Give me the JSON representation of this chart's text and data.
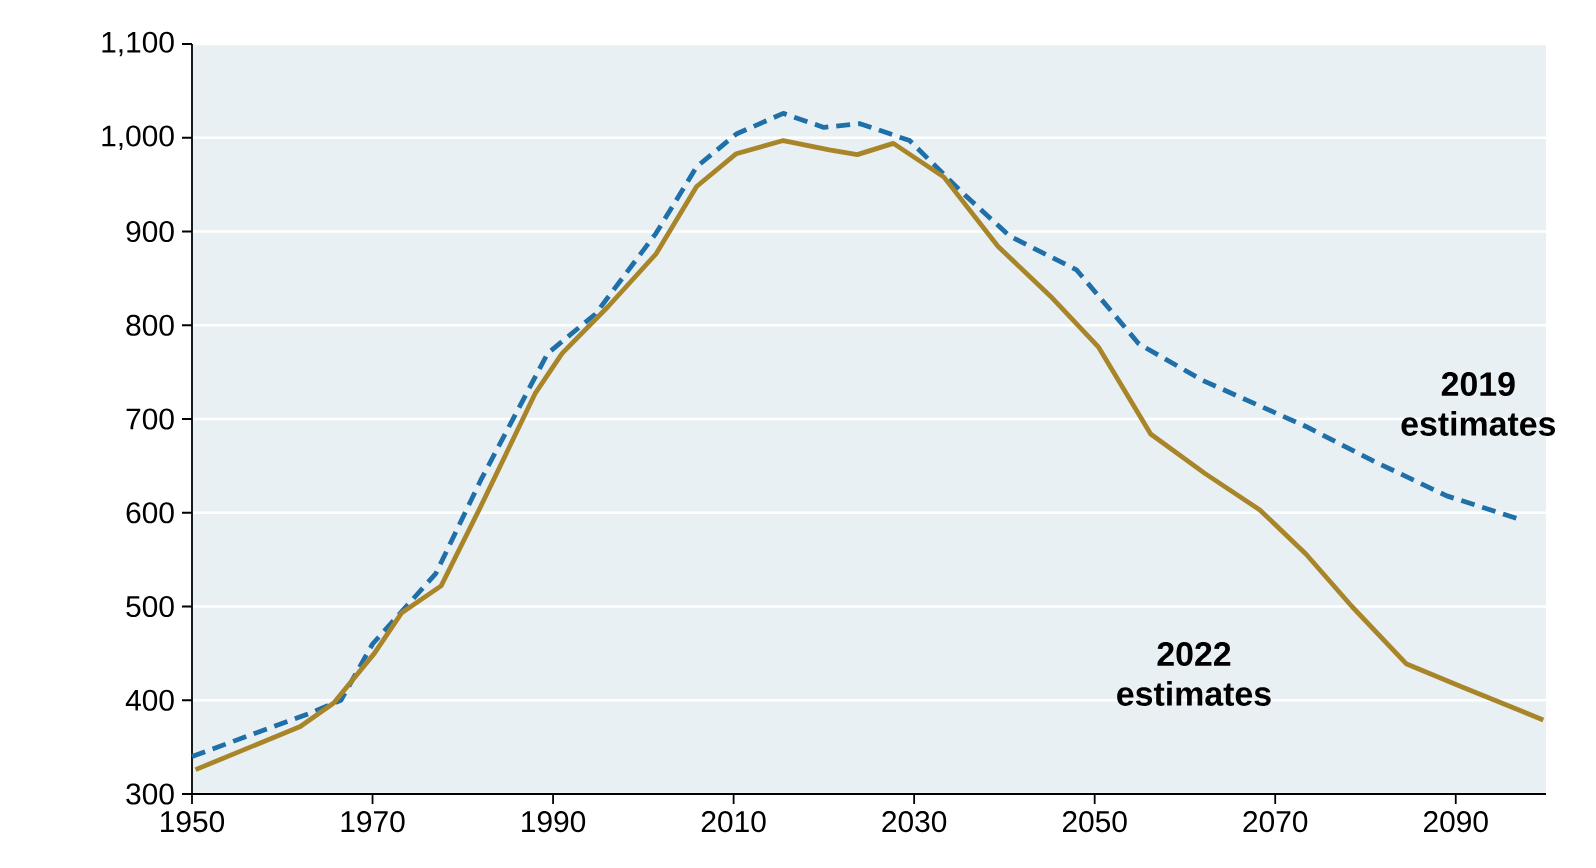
{
  "chart_data": {
    "type": "line",
    "xlim": [
      1950,
      2100
    ],
    "xticks": [
      1950,
      1970,
      1990,
      2010,
      2030,
      2050,
      2070,
      2090
    ],
    "ylim": [
      300,
      1100
    ],
    "yticks": [
      {
        "value": 300,
        "label": "300"
      },
      {
        "value": 400,
        "label": "400"
      },
      {
        "value": 500,
        "label": "500"
      },
      {
        "value": 600,
        "label": "600"
      },
      {
        "value": 700,
        "label": "700"
      },
      {
        "value": 800,
        "label": "800"
      },
      {
        "value": 900,
        "label": "900"
      },
      {
        "value": 1000,
        "label": "1,000"
      },
      {
        "value": 1100,
        "label": "1,100"
      }
    ],
    "grid": "y",
    "series": [
      {
        "name": "2019 estimates",
        "color": "#1f6fa8",
        "line_style": "dashed",
        "x": [
          1950,
          1963,
          1966.5,
          1970,
          1977,
          1982,
          1989.4,
          1994.7,
          2001.4,
          2005.9,
          2010.3,
          2015.5,
          2020,
          2024,
          2029.5,
          2035.5,
          2040.6,
          2048,
          2054.9,
          2062,
          2073.4,
          2080.7,
          2089,
          2097.4
        ],
        "values": [
          340,
          386,
          400,
          460,
          535,
          635,
          770,
          812,
          898,
          969,
          1004,
          1026,
          1011,
          1015,
          997,
          940,
          895,
          859,
          780,
          741,
          692,
          656,
          618,
          592
        ]
      },
      {
        "name": "2022 estimates",
        "color": "#a9852a",
        "line_style": "solid",
        "x": [
          1950.4,
          1962,
          1965.7,
          1970.2,
          1973.2,
          1977.6,
          1982,
          1988,
          1991,
          1996.1,
          2001.4,
          2005.9,
          2010.3,
          2015.5,
          2020.6,
          2023.7,
          2027.7,
          2033.3,
          2039.3,
          2045.1,
          2050.4,
          2056.2,
          2062.2,
          2068.3,
          2073.4,
          2078.5,
          2084.5,
          2090.5,
          2099.7
        ],
        "values": [
          326,
          372,
          397,
          450,
          493,
          522,
          607,
          727,
          770,
          820,
          876,
          948,
          983,
          997,
          987,
          982,
          994,
          958,
          884,
          831,
          777,
          684,
          642,
          603,
          556,
          500,
          439,
          415,
          379
        ]
      }
    ]
  }
}
